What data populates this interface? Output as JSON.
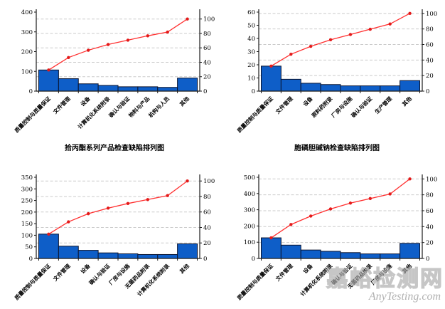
{
  "watermark": {
    "site_name": "嘉峪检测网",
    "site_url": "AnyTesting.com"
  },
  "colors": {
    "bar_fill": "#0E5EC8",
    "bar_stroke": "#0A1430",
    "cumulative_line": "#FF3030",
    "marker": "#E31A1A",
    "grid": "#CBCBCB",
    "axis": "#1A1A1A",
    "text": "#000000"
  },
  "chart_data": [
    {
      "type": "bar",
      "subtype": "pareto-bar-with-cumulative-line",
      "position": "top-left",
      "title": "拾丙酯系列产品检查缺陷排列图",
      "title_position": "below",
      "legend": "none",
      "grid": "horizontal-dashed",
      "categories": [
        "质量控制与质量保证",
        "文件管理",
        "设备",
        "计算机化系统附录",
        "确认与验证",
        "物料与产品",
        "机构与人员",
        "其他"
      ],
      "values": [
        107,
        63,
        37,
        29,
        22,
        22,
        19,
        66
      ],
      "cumulative": [
        107,
        170,
        207,
        236,
        258,
        280,
        299,
        365
      ],
      "cumulative_pct": [
        29.3,
        46.6,
        56.7,
        64.7,
        70.7,
        76.7,
        81.9,
        100
      ],
      "left_axis": {
        "min": 0,
        "max": 400,
        "ticks": [
          0,
          100,
          200,
          300,
          400
        ]
      },
      "right_axis": {
        "min": 0,
        "max": 100,
        "ticks": [
          0,
          20,
          40,
          60,
          80,
          100
        ]
      }
    },
    {
      "type": "bar",
      "subtype": "pareto-bar-with-cumulative-line",
      "position": "top-right",
      "title": "胞磷胆碱钠检查缺陷排列图",
      "title_position": "below",
      "legend": "none",
      "grid": "horizontal-dashed",
      "categories": [
        "质量控制与质量保证",
        "文件管理",
        "设备",
        "原料药附录",
        "厂房与设施",
        "确认与验证",
        "生产管理",
        "其他"
      ],
      "values": [
        19,
        9,
        6,
        5,
        4,
        4,
        4,
        8
      ],
      "cumulative": [
        19,
        28,
        34,
        39,
        43,
        47,
        51,
        59
      ],
      "cumulative_pct": [
        32.2,
        47.5,
        57.6,
        66.1,
        72.9,
        79.7,
        86.4,
        100
      ],
      "left_axis": {
        "min": 0,
        "max": 60,
        "ticks": [
          0,
          10,
          20,
          30,
          40,
          50,
          60
        ]
      },
      "right_axis": {
        "min": 0,
        "max": 100,
        "ticks": [
          0,
          20,
          40,
          60,
          80,
          100
        ]
      }
    },
    {
      "type": "bar",
      "subtype": "pareto-bar-with-cumulative-line",
      "position": "bottom-left",
      "title": "",
      "title_position": "below",
      "legend": "none",
      "grid": "horizontal-dashed",
      "categories": [
        "质量控制与质量保证",
        "文件管理",
        "设备",
        "确认与验证",
        "厂房与设施",
        "无菌药品附录",
        "计算机化系统附录",
        "其他"
      ],
      "values": [
        105,
        53,
        35,
        24,
        20,
        17,
        17,
        63
      ],
      "cumulative": [
        105,
        158,
        193,
        217,
        237,
        254,
        271,
        334
      ],
      "cumulative_pct": [
        31.4,
        47.3,
        57.8,
        65.0,
        71.0,
        76.0,
        81.1,
        100
      ],
      "left_axis": {
        "min": 0,
        "max": 350,
        "ticks": [
          0,
          50,
          100,
          150,
          200,
          250,
          300,
          350
        ]
      },
      "right_axis": {
        "min": 0,
        "max": 100,
        "ticks": [
          0,
          20,
          40,
          60,
          80,
          100
        ]
      }
    },
    {
      "type": "bar",
      "subtype": "pareto-bar-with-cumulative-line",
      "position": "bottom-right",
      "title": "",
      "title_position": "below",
      "legend": "none",
      "grid": "horizontal-dashed",
      "categories": [
        "质量控制与质量保证",
        "文件管理",
        "设备",
        "计算机化系统附录",
        "确认与验证",
        "无菌药品附录",
        "厂房与设施",
        "其他"
      ],
      "values": [
        127,
        82,
        52,
        44,
        36,
        28,
        28,
        93
      ],
      "cumulative": [
        127,
        209,
        261,
        305,
        341,
        369,
        397,
        490
      ],
      "cumulative_pct": [
        25.9,
        42.7,
        53.3,
        62.2,
        69.6,
        75.3,
        81.0,
        100
      ],
      "left_axis": {
        "min": 0,
        "max": 500,
        "ticks": [
          0,
          100,
          200,
          300,
          400,
          500
        ]
      },
      "right_axis": {
        "min": 0,
        "max": 100,
        "ticks": [
          0,
          20,
          40,
          60,
          80,
          100
        ]
      }
    }
  ]
}
